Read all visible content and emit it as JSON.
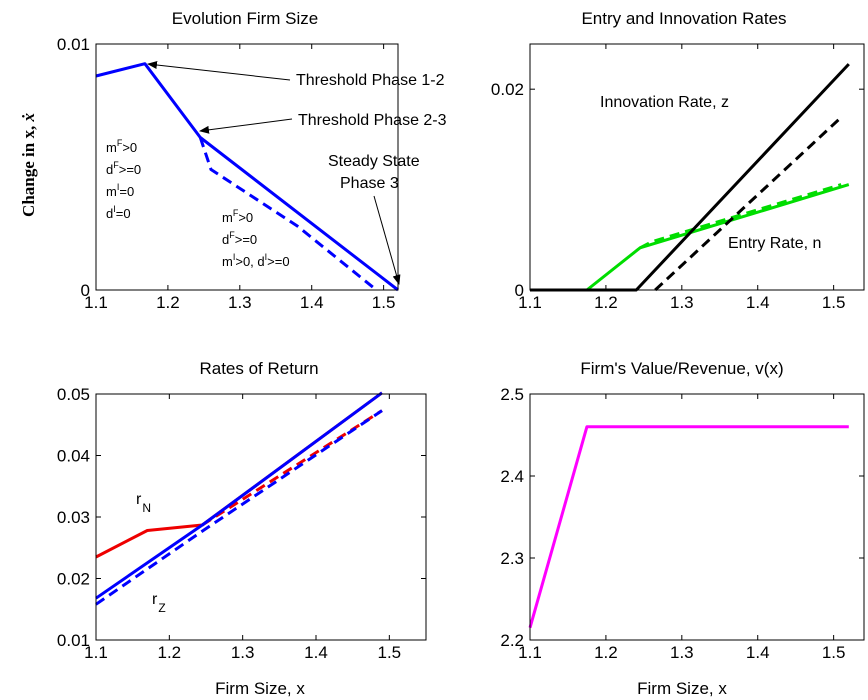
{
  "chart_data": [
    {
      "type": "line",
      "title": "Evolution Firm Size",
      "ylabel": "Change in x, ẋ",
      "xlabel": "",
      "xlim": [
        1.1,
        1.55
      ],
      "ylim": [
        0,
        0.01
      ],
      "xticks": [
        "1.1",
        "1.2",
        "1.3",
        "1.4",
        "1.5"
      ],
      "yticks": [
        "0",
        "0.01"
      ],
      "series": [
        {
          "color": "#0000ff",
          "dash": false,
          "x": [
            1.1,
            1.168,
            1.245,
            1.52
          ],
          "y": [
            0.0087,
            0.0092,
            0.0062,
            0.0
          ]
        },
        {
          "color": "#0000ff",
          "dash": true,
          "x": [
            1.245,
            1.26,
            1.38,
            1.49
          ],
          "y": [
            0.0062,
            0.0049,
            0.0026,
            0.0
          ]
        }
      ],
      "annotations": [
        {
          "text": "Threshold Phase 1-2"
        },
        {
          "text": "Threshold Phase 2-3"
        },
        {
          "text": "Steady State"
        },
        {
          "text": "Phase 3"
        }
      ],
      "conditions_a": [
        {
          "base": "m",
          "sup": "F",
          "rest": ">0"
        },
        {
          "base": "d",
          "sup": "F",
          "rest": ">=0"
        },
        {
          "base": "m",
          "sup": "I",
          "rest": "=0"
        },
        {
          "base": "d",
          "sup": "I",
          "rest": "=0"
        }
      ],
      "conditions_b": [
        {
          "base": "m",
          "sup": "F",
          "rest": ">0"
        },
        {
          "base": "d",
          "sup": "F",
          "rest": ">=0"
        }
      ],
      "conditions_b_last": {
        "base1": "m",
        "sup1": "I",
        "rest1": ">0, ",
        "base2": "d",
        "sup2": "I",
        "rest2": ">=0"
      }
    },
    {
      "type": "line",
      "title": "Entry and Innovation Rates",
      "xlabel": "",
      "ylabel": "",
      "xlim": [
        1.1,
        1.55
      ],
      "ylim": [
        0,
        0.0245
      ],
      "xticks": [
        "1.1",
        "1.2",
        "1.3",
        "1.4",
        "1.5"
      ],
      "yticks": [
        "0",
        "0.02"
      ],
      "series": [
        {
          "color": "#00dd00",
          "dash": false,
          "x": [
            1.1,
            1.175,
            1.245,
            1.52
          ],
          "y": [
            0.0,
            0.0,
            0.0042,
            0.0105
          ]
        },
        {
          "color": "#00dd00",
          "dash": true,
          "x": [
            1.245,
            1.26,
            1.51
          ],
          "y": [
            0.0042,
            0.0048,
            0.0105
          ]
        },
        {
          "color": "#000000",
          "dash": false,
          "x": [
            1.1,
            1.24,
            1.52
          ],
          "y": [
            0.0,
            0.0,
            0.0225
          ]
        },
        {
          "color": "#000000",
          "dash": true,
          "x": [
            1.265,
            1.51
          ],
          "y": [
            0.0,
            0.0172
          ]
        }
      ],
      "annotations": [
        {
          "text": "Innovation Rate, z"
        },
        {
          "text": "Entry Rate, n"
        }
      ]
    },
    {
      "type": "line",
      "title": "Rates of Return",
      "xlabel": "Firm Size, x",
      "ylabel": "",
      "xlim": [
        1.1,
        1.55
      ],
      "ylim": [
        0.01,
        0.05
      ],
      "xticks": [
        "1.1",
        "1.2",
        "1.3",
        "1.4",
        "1.5"
      ],
      "yticks": [
        "0.01",
        "0.02",
        "0.03",
        "0.04",
        "0.05"
      ],
      "series": [
        {
          "color": "#ee0000",
          "dash": false,
          "x": [
            1.1,
            1.17,
            1.245,
            1.49
          ],
          "y": [
            0.0235,
            0.0278,
            0.0287,
            0.0502
          ]
        },
        {
          "color": "#ee0000",
          "dash": true,
          "x": [
            1.245,
            1.49
          ],
          "y": [
            0.0287,
            0.0473
          ]
        },
        {
          "color": "#0000ff",
          "dash": false,
          "x": [
            1.1,
            1.245,
            1.49
          ],
          "y": [
            0.0168,
            0.0287,
            0.0502
          ]
        },
        {
          "color": "#0000ff",
          "dash": true,
          "x": [
            1.1,
            1.245,
            1.49
          ],
          "y": [
            0.0158,
            0.0277,
            0.0473
          ]
        }
      ],
      "annotations": [
        {
          "base": "r",
          "sub": "N"
        },
        {
          "base": "r",
          "sub": "Z"
        }
      ]
    },
    {
      "type": "line",
      "title": "Firm's Value/Revenue, v(x)",
      "xlabel": "Firm Size, x",
      "ylabel": "",
      "xlim": [
        1.1,
        1.55
      ],
      "ylim": [
        2.2,
        2.5
      ],
      "xticks": [
        "1.1",
        "1.2",
        "1.3",
        "1.4",
        "1.5"
      ],
      "yticks": [
        "2.2",
        "2.3",
        "2.4",
        "2.5"
      ],
      "series": [
        {
          "color": "#ff00ff",
          "dash": false,
          "x": [
            1.1,
            1.175,
            1.52
          ],
          "y": [
            2.215,
            2.46,
            2.46
          ]
        }
      ]
    }
  ]
}
